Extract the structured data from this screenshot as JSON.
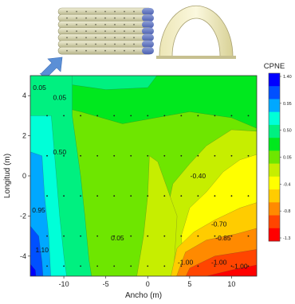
{
  "chart_data": {
    "type": "heatmap",
    "subtype": "filled-contour",
    "xlabel": "Ancho (m)",
    "ylabel": "Longitud (m)",
    "xlim": [
      -14,
      13
    ],
    "ylim": [
      -5,
      5
    ],
    "x_ticks": [
      -10,
      -5,
      0,
      5,
      10
    ],
    "y_ticks": [
      -4,
      -2,
      0,
      2,
      4
    ],
    "x_tick_labels": [
      "-10",
      "-5",
      "0",
      "5",
      "10"
    ],
    "y_tick_labels": [
      "-4",
      "-2",
      "0",
      "2",
      "4"
    ],
    "grid": false,
    "colorbar": {
      "title": "CPNE",
      "position": "right",
      "ticks": [
        1.4,
        0.95,
        0.5,
        0.05,
        -0.4,
        -0.85,
        -1.3
      ],
      "tick_labels": [
        "1.40",
        "0.95",
        "0.50",
        "0.05",
        "-0.4",
        "-0.8",
        "-1.3"
      ],
      "colors": [
        "#0000ff",
        "#0050ff",
        "#00a8ff",
        "#00ffd8",
        "#00f080",
        "#00e81e",
        "#6ee600",
        "#c6ee00",
        "#ffff00",
        "#ffcc00",
        "#ff8a00",
        "#ff4500",
        "#ff0000"
      ]
    },
    "contour_labels": [
      {
        "text": "0.05",
        "x": -12.9,
        "y": 4.4
      },
      {
        "text": "0.05",
        "x": -10.5,
        "y": 3.9
      },
      {
        "text": "0.50",
        "x": -10.5,
        "y": 1.2
      },
      {
        "text": "0.95",
        "x": -13.0,
        "y": -1.7
      },
      {
        "text": "1.10",
        "x": -12.6,
        "y": -3.7
      },
      {
        "text": "0.05",
        "x": -3.6,
        "y": -3.1
      },
      {
        "text": "-0.40",
        "x": 6.0,
        "y": 0.0
      },
      {
        "text": "-0.70",
        "x": 8.5,
        "y": -2.4
      },
      {
        "text": "-0.85",
        "x": 9.0,
        "y": -3.1
      },
      {
        "text": "-1.00",
        "x": 4.5,
        "y": -4.3
      },
      {
        "text": "-1.00",
        "x": 8.5,
        "y": -4.3
      },
      {
        "text": "-1.00",
        "x": 11.0,
        "y": -4.5
      }
    ],
    "sample_points": {
      "x": [
        -12,
        -10,
        -8,
        -6,
        -4,
        -2,
        0,
        2,
        4,
        6,
        8,
        10,
        12
      ],
      "y": [
        3,
        1,
        -1,
        -3,
        -4.5
      ]
    }
  }
}
